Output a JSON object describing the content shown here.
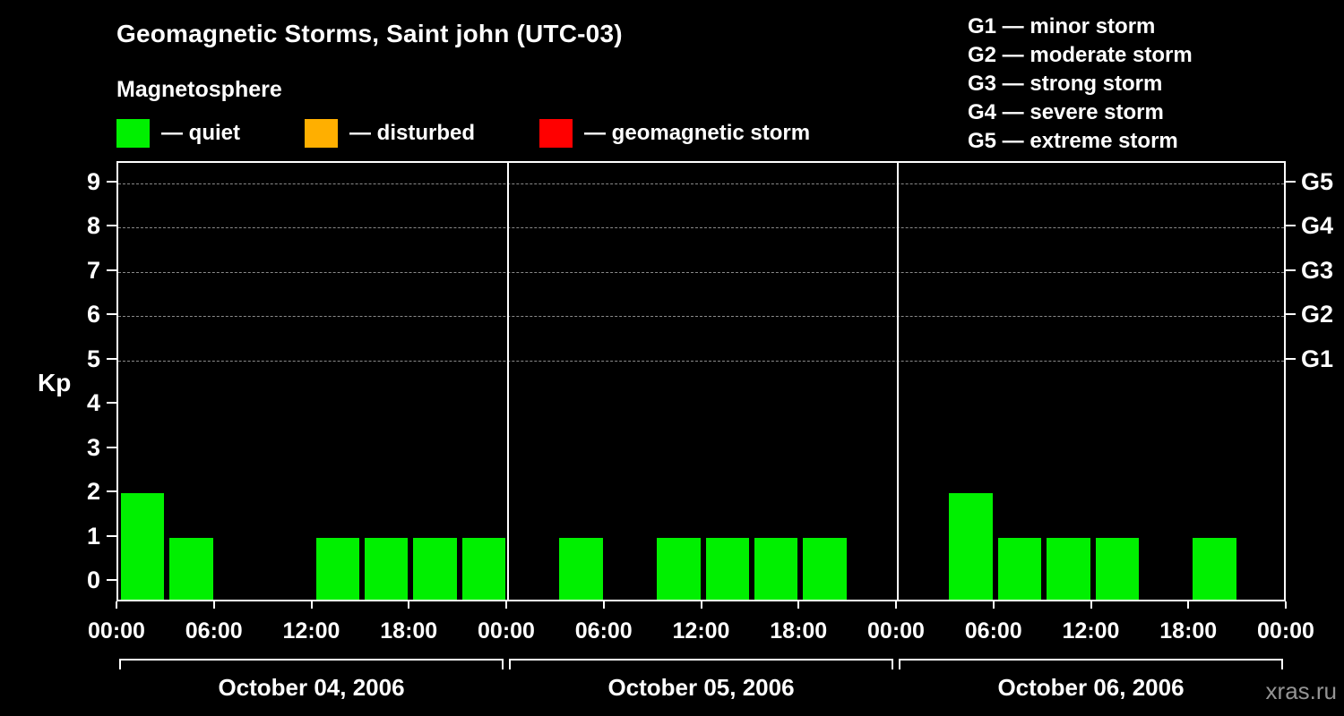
{
  "header": {
    "title": "Geomagnetic Storms, Saint john (UTC-03)",
    "subtitle": "Magnetosphere"
  },
  "legend": {
    "items": [
      {
        "label": "— quiet",
        "color": "#00f000",
        "icon": "quiet-swatch"
      },
      {
        "label": "— disturbed",
        "color": "#ffaf00",
        "icon": "disturbed-swatch"
      },
      {
        "label": "— geomagnetic storm",
        "color": "#ff0000",
        "icon": "storm-swatch"
      }
    ]
  },
  "storm_scale": {
    "items": [
      "G1 — minor storm",
      "G2 — moderate storm",
      "G3 — strong storm",
      "G4 — severe storm",
      "G5 — extreme storm"
    ]
  },
  "watermark": "xras.ru",
  "chart_data": {
    "type": "bar",
    "title": "Geomagnetic Storms, Saint john (UTC-03)",
    "ylabel": "Kp",
    "ylim": [
      0,
      9
    ],
    "yticks": [
      0,
      1,
      2,
      3,
      4,
      5,
      6,
      7,
      8,
      9
    ],
    "gridlines_at": [
      5,
      6,
      7,
      8,
      9
    ],
    "grid": "dashed-horizontal",
    "right_labels": [
      {
        "value": 5,
        "label": "G1"
      },
      {
        "value": 6,
        "label": "G2"
      },
      {
        "value": 7,
        "label": "G3"
      },
      {
        "value": 8,
        "label": "G4"
      },
      {
        "value": 9,
        "label": "G5"
      }
    ],
    "x_tick_labels": [
      "00:00",
      "06:00",
      "12:00",
      "18:00",
      "00:00",
      "06:00",
      "12:00",
      "18:00",
      "00:00",
      "06:00",
      "12:00",
      "18:00",
      "00:00"
    ],
    "bar_interval_hours": 3,
    "days": [
      {
        "date": "October 04, 2006",
        "values": [
          2,
          1,
          0,
          0,
          1,
          1,
          1,
          1
        ]
      },
      {
        "date": "October 05, 2006",
        "values": [
          0,
          1,
          0,
          1,
          1,
          1,
          1,
          0
        ]
      },
      {
        "date": "October 06, 2006",
        "values": [
          0,
          2,
          1,
          1,
          1,
          0,
          1,
          0
        ]
      }
    ],
    "colors": {
      "quiet": "#00f000",
      "disturbed": "#ffaf00",
      "storm": "#ff0000"
    },
    "thresholds": {
      "quiet_max": 3,
      "disturbed_max": 4
    },
    "legend_position": "top-left"
  }
}
